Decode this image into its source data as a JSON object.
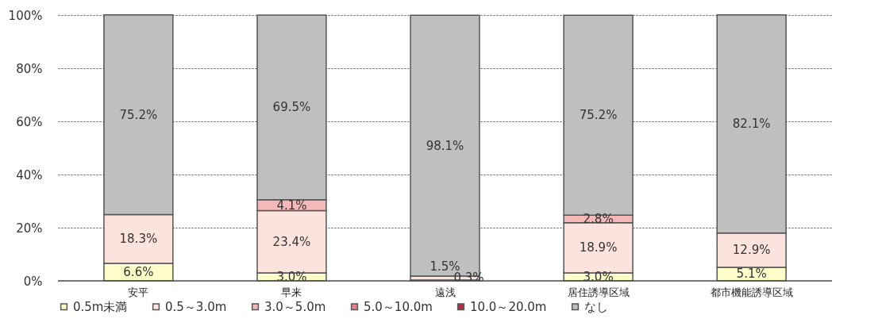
{
  "chart_data": {
    "type": "bar",
    "stacked": true,
    "categories": [
      "安平",
      "早来",
      "遠浅",
      "居住誘導区域",
      "都市機能誘導区域"
    ],
    "ylim": [
      0,
      100
    ],
    "yticks": [
      {
        "value": 0,
        "label": "0%"
      },
      {
        "value": 20,
        "label": "20%"
      },
      {
        "value": 40,
        "label": "40%"
      },
      {
        "value": 60,
        "label": "60%"
      },
      {
        "value": 80,
        "label": "80%"
      },
      {
        "value": 100,
        "label": "100%"
      }
    ],
    "grid": "y",
    "legend": "bottom",
    "series": [
      {
        "name": "0.5m未満",
        "color": "#ffffcc",
        "values": [
          6.6,
          3.0,
          0.3,
          3.0,
          5.1
        ],
        "value_labels": [
          "6.6%",
          "3.0%",
          "0.3%",
          "3.0%",
          "5.1%"
        ]
      },
      {
        "name": "0.5～3.0m",
        "color": "#fde3dd",
        "values": [
          18.3,
          23.4,
          1.5,
          18.9,
          12.9
        ],
        "value_labels": [
          "18.3%",
          "23.4%",
          "1.5%",
          "18.9%",
          "12.9%"
        ]
      },
      {
        "name": "3.0～5.0m",
        "color": "#f4b8b8",
        "values": [
          null,
          4.1,
          null,
          2.8,
          null
        ],
        "value_labels": [
          null,
          "4.1%",
          null,
          "2.8%",
          null
        ]
      },
      {
        "name": "5.0～10.0m",
        "color": "#e4808c",
        "values": [
          null,
          null,
          null,
          null,
          null
        ],
        "value_labels": [
          null,
          null,
          null,
          null,
          null
        ]
      },
      {
        "name": "10.0～20.0m",
        "color": "#b0304a",
        "values": [
          null,
          null,
          null,
          null,
          null
        ],
        "value_labels": [
          null,
          null,
          null,
          null,
          null
        ]
      },
      {
        "name": "なし",
        "color": "#bfbfbf",
        "values": [
          75.2,
          69.5,
          98.1,
          75.2,
          82.1
        ],
        "value_labels": [
          "75.2%",
          "69.5%",
          "98.1%",
          "75.2%",
          "82.1%"
        ]
      }
    ]
  }
}
